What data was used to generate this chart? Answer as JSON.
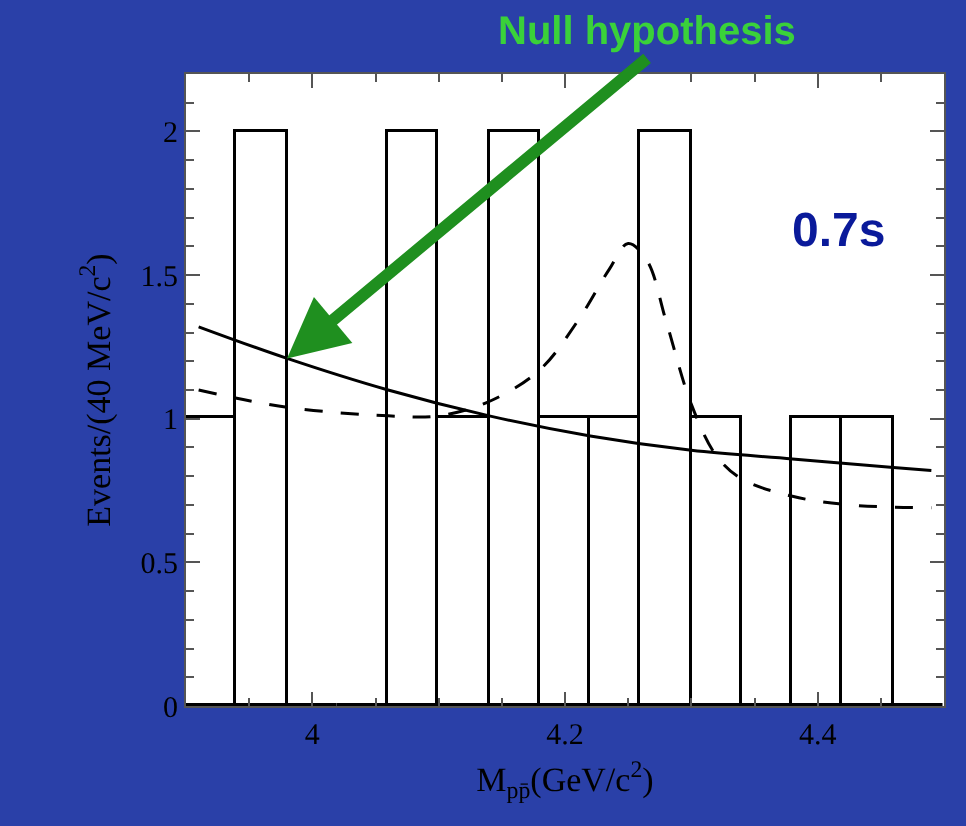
{
  "chart_data": {
    "type": "histogram",
    "xlabel": "M$_{pp̄}$(GeV/c$^{2}$)",
    "ylabel": "Events/(40 MeV/c$^{2}$)",
    "color": "#000000",
    "bins": [
      3.9,
      3.94,
      3.98,
      4.02,
      4.06,
      4.1,
      4.14,
      4.18,
      4.22,
      4.26,
      4.3,
      4.34,
      4.38,
      4.42,
      4.46,
      4.5
    ],
    "values": [
      1,
      2,
      0,
      0,
      2,
      1,
      2,
      1,
      1,
      2,
      1,
      0,
      1,
      1,
      0
    ],
    "series": [
      {
        "type": "line",
        "color": "#000000",
        "line_style": "solid",
        "x": [
          3.91,
          3.98,
          4.06,
          4.14,
          4.22,
          4.3,
          4.38,
          4.46,
          4.49
        ],
        "values": [
          1.32,
          1.21,
          1.1,
          1.01,
          0.94,
          0.89,
          0.86,
          0.83,
          0.82
        ]
      },
      {
        "type": "line",
        "color": "#000000",
        "line_style": "dashed",
        "x": [
          3.91,
          3.98,
          4.06,
          4.1,
          4.14,
          4.18,
          4.21,
          4.235,
          4.25,
          4.265,
          4.28,
          4.3,
          4.32,
          4.34,
          4.38,
          4.425,
          4.49
        ],
        "values": [
          1.1,
          1.04,
          1.01,
          1.01,
          1.06,
          1.17,
          1.34,
          1.52,
          1.61,
          1.55,
          1.34,
          1.05,
          0.87,
          0.79,
          0.73,
          0.7,
          0.69
        ]
      }
    ],
    "xlim": [
      3.9,
      4.5
    ],
    "ylim": [
      0,
      2.2
    ],
    "xticks": [
      4,
      4.2,
      4.4
    ],
    "yticks": [
      0,
      0.5,
      1,
      1.5,
      2
    ],
    "annotations": [
      {
        "text": "Null hypothesis",
        "x": 3.98,
        "y": 1.21
      },
      "0.7s"
    ]
  }
}
